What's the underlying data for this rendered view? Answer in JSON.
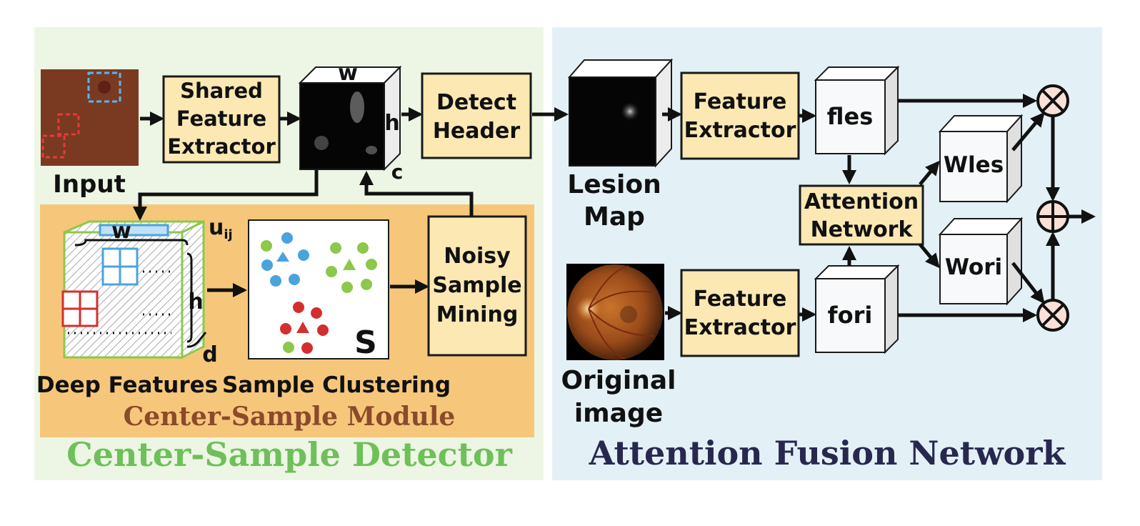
{
  "colors": {
    "left_panel": "#edf6e4",
    "right_panel": "#e3f1f7",
    "module_panel": "#f6c77b",
    "box_fill": "#fbe8b3",
    "title_left": "#6ec059",
    "title_right": "#28284f",
    "module_title": "#8b4a2b",
    "red": "#d32f2f",
    "blue": "#4aa3dd",
    "green": "#8cc84b"
  },
  "left": {
    "input_label": "Input",
    "shared_extractor": [
      "Shared",
      "Feature",
      "Extractor"
    ],
    "dim_w": "w",
    "dim_h": "h",
    "dim_c": "c",
    "detect_header": [
      "Detect",
      "Header"
    ],
    "module": {
      "title": "Center-Sample Module",
      "deep_features": "Deep Features",
      "sample_clustering": "Sample Clustering",
      "noisy_mining": [
        "Noisy",
        "Sample",
        "Mining"
      ],
      "cluster_symbol": "S",
      "dim_w": "w",
      "dim_h": "h",
      "dim_d": "d",
      "dim_u": "u",
      "dim_u_sub": "ij"
    },
    "title": "Center-Sample Detector"
  },
  "right": {
    "lesion_map": [
      "Lesion",
      "Map"
    ],
    "original_image": [
      "Original",
      "image"
    ],
    "feature_extractor_top": [
      "Feature",
      "Extractor"
    ],
    "feature_extractor_bottom": [
      "Feature",
      "Extractor"
    ],
    "fles": "fles",
    "fori": "fori",
    "attention_network": [
      "Attention",
      "Network"
    ],
    "wles": "Wles",
    "wori": "Wori",
    "title": "Attention Fusion Network"
  }
}
